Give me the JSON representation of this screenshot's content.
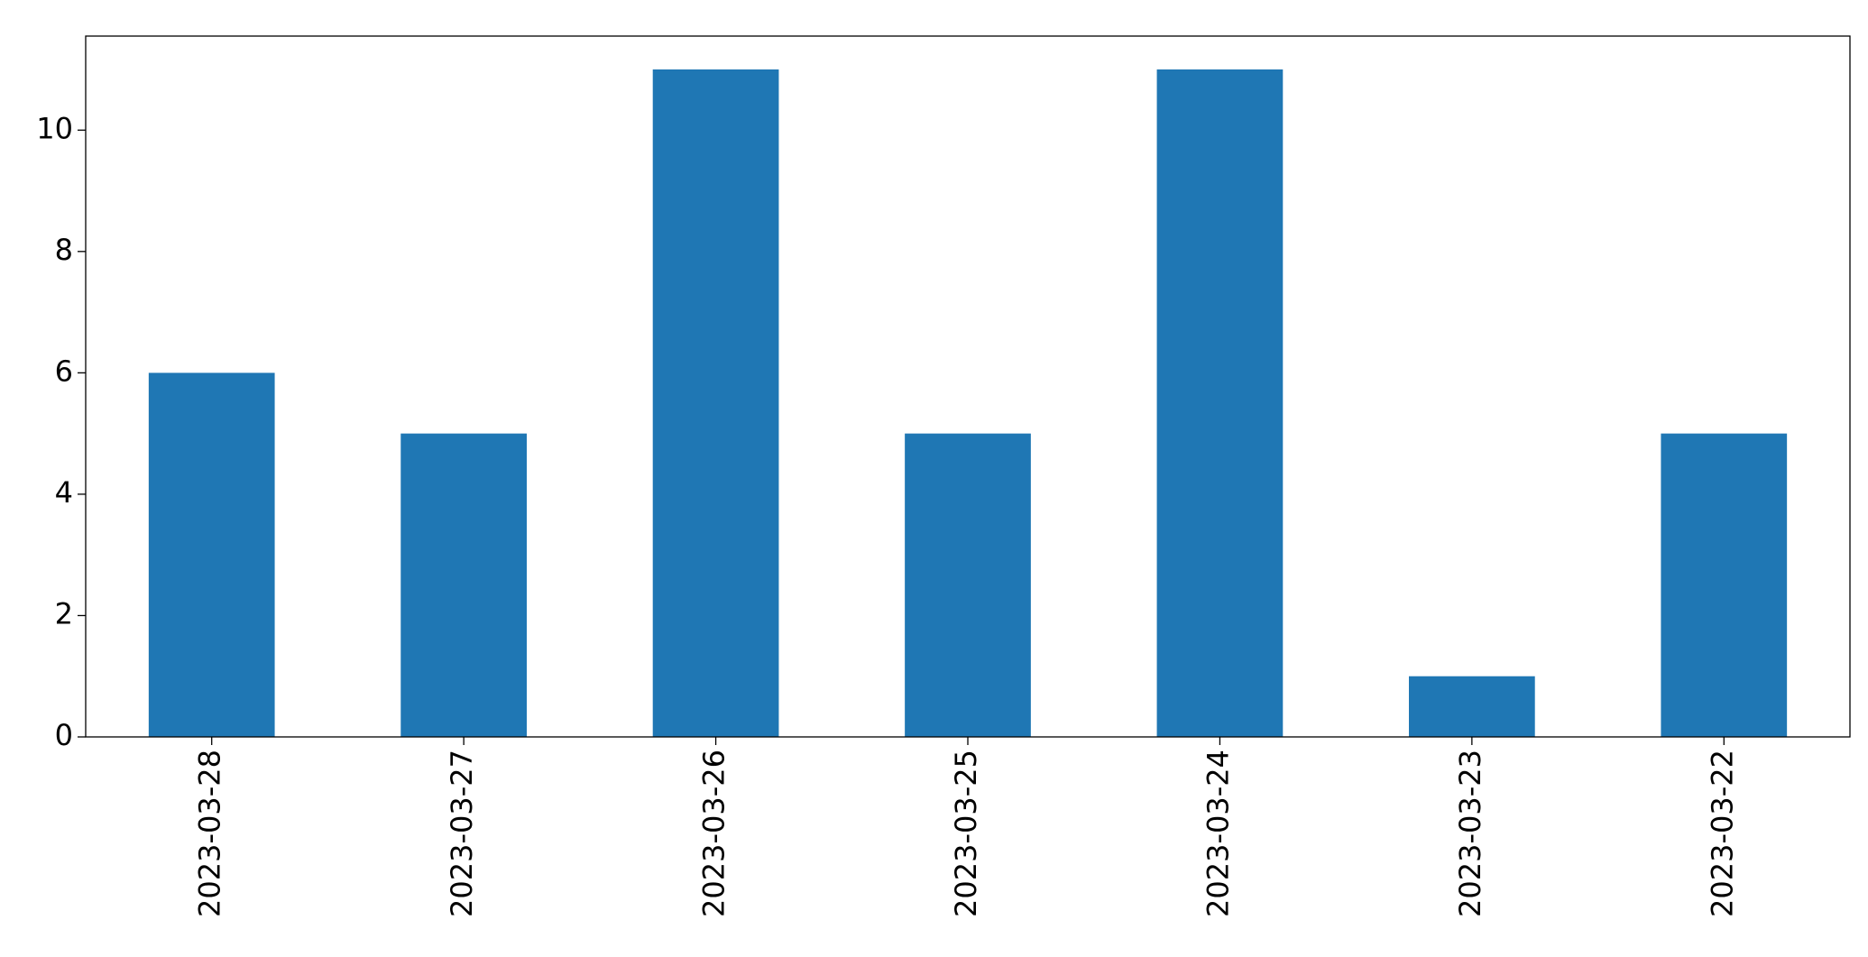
{
  "chart_data": {
    "type": "bar",
    "categories": [
      "2023-03-28",
      "2023-03-27",
      "2023-03-26",
      "2023-03-25",
      "2023-03-24",
      "2023-03-23",
      "2023-03-22"
    ],
    "values": [
      6,
      5,
      11,
      5,
      11,
      1,
      5
    ],
    "color": "#1f77b4",
    "ylim": [
      0,
      11.55
    ],
    "yticks": [
      0,
      2,
      4,
      6,
      8,
      10
    ],
    "grid": false
  }
}
